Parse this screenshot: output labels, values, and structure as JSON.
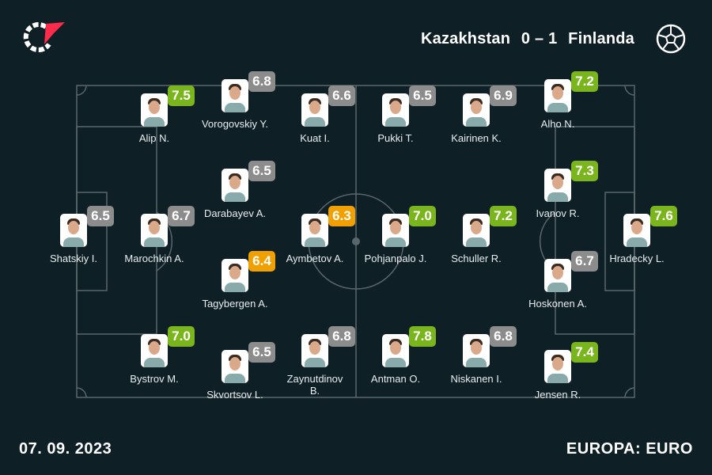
{
  "header": {
    "home_team": "Kazakhstan",
    "score": "0 – 1",
    "away_team": "Finlanda"
  },
  "colors": {
    "background": "#0f1f26",
    "good": "#7ab51d",
    "average": "#8c8c8c",
    "poor": "#f0a000"
  },
  "players": [
    {
      "name": "Alip N.",
      "rating": "7.5",
      "badge_color": "#7ab51d"
    },
    {
      "name": "Vorogovskiy Y.",
      "rating": "6.8",
      "badge_color": "#8c8c8c"
    },
    {
      "name": "Kuat I.",
      "rating": "6.6",
      "badge_color": "#8c8c8c"
    },
    {
      "name": "Pukki T.",
      "rating": "6.5",
      "badge_color": "#8c8c8c"
    },
    {
      "name": "Kairinen K.",
      "rating": "6.9",
      "badge_color": "#8c8c8c"
    },
    {
      "name": "Alho N.",
      "rating": "7.2",
      "badge_color": "#7ab51d"
    },
    {
      "name": "Darabayev A.",
      "rating": "6.5",
      "badge_color": "#8c8c8c"
    },
    {
      "name": "Ivanov R.",
      "rating": "7.3",
      "badge_color": "#7ab51d"
    },
    {
      "name": "Shatskiy I.",
      "rating": "6.5",
      "badge_color": "#8c8c8c"
    },
    {
      "name": "Marochkin A.",
      "rating": "6.7",
      "badge_color": "#8c8c8c"
    },
    {
      "name": "Aymbetov A.",
      "rating": "6.3",
      "badge_color": "#f0a000"
    },
    {
      "name": "Pohjanpalo J.",
      "rating": "7.0",
      "badge_color": "#7ab51d"
    },
    {
      "name": "Schuller R.",
      "rating": "7.2",
      "badge_color": "#7ab51d"
    },
    {
      "name": "Hradecky L.",
      "rating": "7.6",
      "badge_color": "#7ab51d"
    },
    {
      "name": "Tagybergen A.",
      "rating": "6.4",
      "badge_color": "#f0a000"
    },
    {
      "name": "Hoskonen A.",
      "rating": "6.7",
      "badge_color": "#8c8c8c"
    },
    {
      "name": "Bystrov M.",
      "rating": "7.0",
      "badge_color": "#7ab51d"
    },
    {
      "name": "Skvortsov L.",
      "rating": "6.5",
      "badge_color": "#8c8c8c"
    },
    {
      "name": "Zaynutdinov B.",
      "rating": "6.8",
      "badge_color": "#8c8c8c"
    },
    {
      "name": "Antman O.",
      "rating": "7.8",
      "badge_color": "#7ab51d"
    },
    {
      "name": "Niskanen I.",
      "rating": "6.8",
      "badge_color": "#8c8c8c"
    },
    {
      "name": "Jensen R.",
      "rating": "7.4",
      "badge_color": "#7ab51d"
    }
  ],
  "footer": {
    "date": "07. 09. 2023",
    "competition": "EUROPA: EURO"
  }
}
